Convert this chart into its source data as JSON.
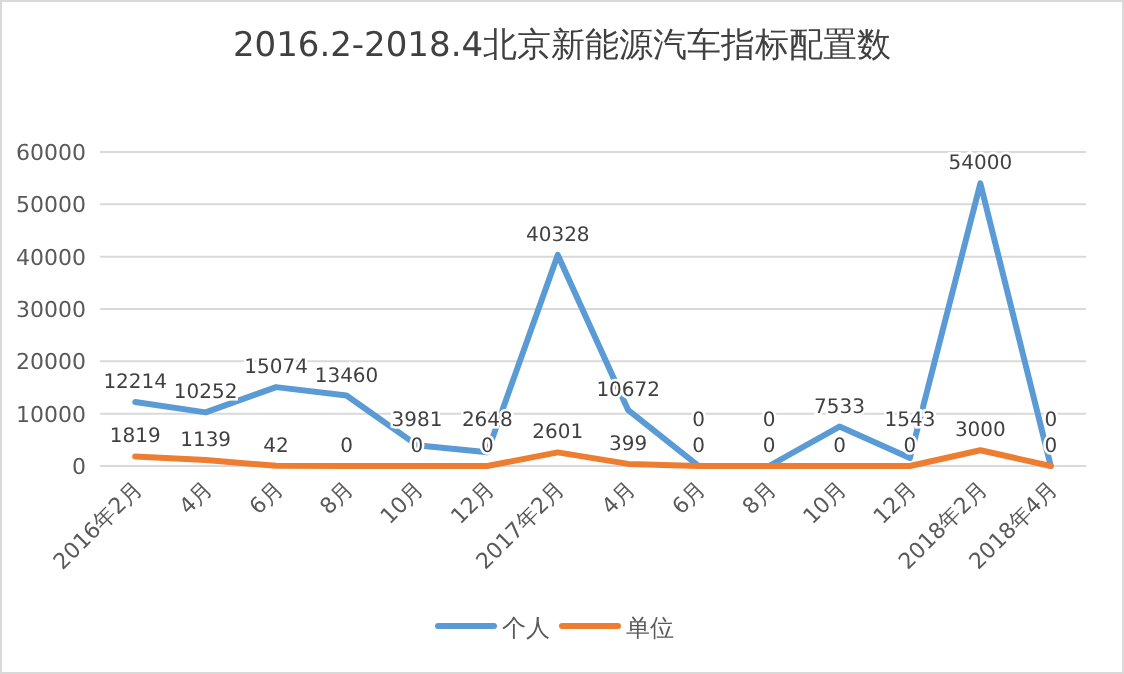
{
  "chart_data": {
    "type": "line",
    "title": "2016.2-2018.4北京新能源汽车指标配置数",
    "categories": [
      "2016年2月",
      "4月",
      "6月",
      "8月",
      "10月",
      "12月",
      "2017年2月",
      "4月",
      "6月",
      "8月",
      "10月",
      "12月",
      "2018年2月",
      "2018年4月"
    ],
    "series": [
      {
        "name": "个人",
        "color": "#5b9bd5",
        "values": [
          12214,
          10252,
          15074,
          13460,
          3981,
          2648,
          40328,
          10672,
          0,
          0,
          7533,
          1543,
          54000,
          0
        ]
      },
      {
        "name": "单位",
        "color": "#ed7d31",
        "values": [
          1819,
          1139,
          42,
          0,
          0,
          0,
          2601,
          399,
          0,
          0,
          0,
          0,
          3000,
          0
        ]
      }
    ],
    "ylim": [
      0,
      60000
    ],
    "yticks": [
      0,
      10000,
      20000,
      30000,
      40000,
      50000,
      60000
    ],
    "grid": "y",
    "legend": "bottom",
    "data_labels": true,
    "marker": "none",
    "line_style": "solid"
  }
}
